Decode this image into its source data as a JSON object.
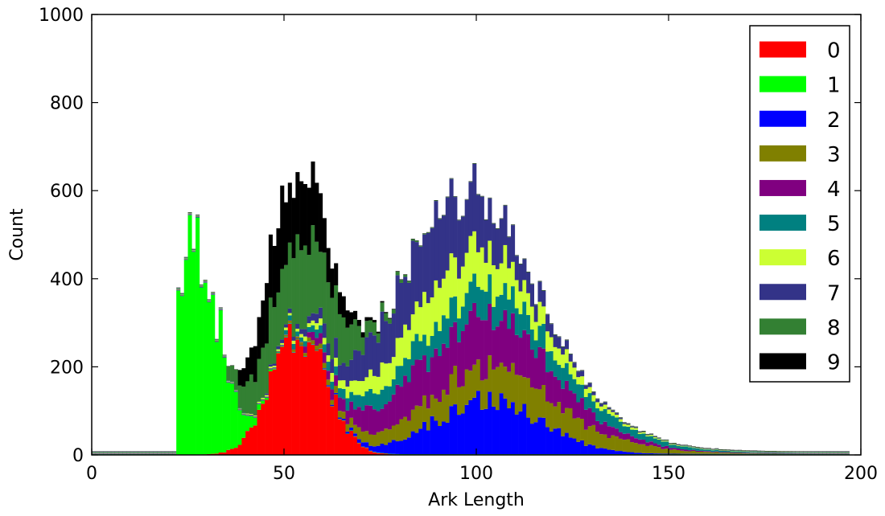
{
  "chart_data": {
    "type": "bar",
    "stacked": true,
    "xlabel": "Ark Length",
    "ylabel": "Count",
    "xlim": [
      0,
      200
    ],
    "ylim": [
      0,
      1000
    ],
    "xticks": [
      0,
      50,
      100,
      150,
      200
    ],
    "yticks": [
      0,
      200,
      400,
      600,
      800,
      1000
    ],
    "grid": false,
    "legend_position": "top-right",
    "series": [
      {
        "name": "0",
        "color": "#ff0000",
        "peak": 290,
        "center": 54,
        "sigma": 7,
        "start": 22
      },
      {
        "name": "1",
        "color": "#00ff00",
        "peak": 480,
        "center": 27,
        "sigma": 6,
        "start": 22
      },
      {
        "name": "2",
        "color": "#0000ff",
        "peak": 120,
        "center": 103,
        "sigma": 14,
        "start": 60
      },
      {
        "name": "3",
        "color": "#808000",
        "peak": 80,
        "center": 105,
        "sigma": 22,
        "start": 50
      },
      {
        "name": "4",
        "color": "#800080",
        "peak": 120,
        "center": 98,
        "sigma": 20,
        "start": 55
      },
      {
        "name": "5",
        "color": "#008080",
        "peak": 60,
        "center": 100,
        "sigma": 25,
        "start": 50
      },
      {
        "name": "6",
        "color": "#ccff33",
        "peak": 90,
        "center": 95,
        "sigma": 18,
        "start": 40
      },
      {
        "name": "7",
        "color": "#333388",
        "peak": 150,
        "center": 90,
        "sigma": 16,
        "start": 45
      },
      {
        "name": "8",
        "color": "#338033",
        "peak": 180,
        "center": 54,
        "sigma": 10,
        "start": 35
      },
      {
        "name": "9",
        "color": "#000000",
        "peak": 170,
        "center": 52,
        "sigma": 8,
        "start": 38
      }
    ]
  }
}
